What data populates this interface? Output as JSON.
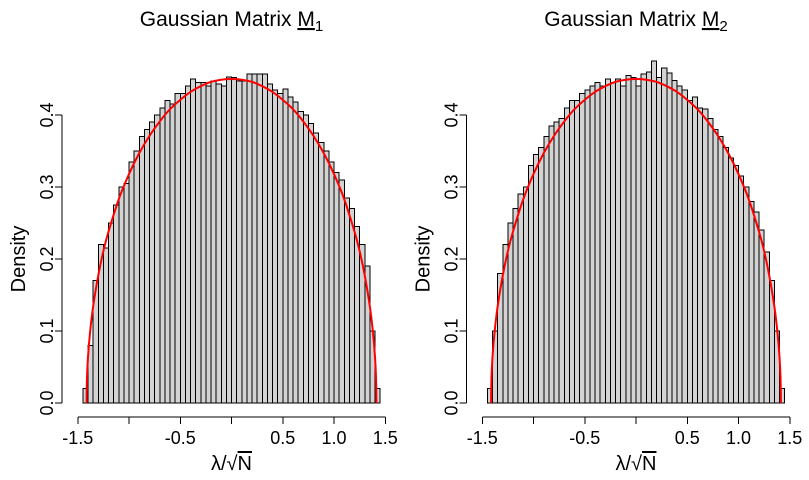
{
  "chart_data": [
    {
      "type": "bar",
      "title": {
        "text": "Gaussian Matrix",
        "symbol": "M",
        "subscript": "1"
      },
      "xlabel": {
        "text": "λ/√",
        "radicand": "N"
      },
      "ylabel": "Density",
      "xlim": [
        -1.5,
        1.5
      ],
      "ylim": [
        0,
        0.4
      ],
      "grid": false,
      "x_ticks": [
        -1.5,
        -1.0,
        -0.5,
        0.0,
        0.5,
        1.0,
        1.5
      ],
      "x_tick_labels": {
        "at": [
          -1.5,
          -0.5,
          0.5,
          1.0,
          1.5
        ],
        "text": [
          "-1.5",
          "-0.5",
          "0.5",
          "1.0",
          "1.5"
        ]
      },
      "y_ticks": [
        0.0,
        0.1,
        0.2,
        0.3,
        0.4
      ],
      "y_tick_labels": [
        "0.0",
        "0.1",
        "0.2",
        "0.3",
        "0.4"
      ],
      "bins": {
        "from": -1.45,
        "to": 1.45,
        "width": 0.05
      },
      "values": [
        0.02,
        0.08,
        0.17,
        0.22,
        0.215,
        0.25,
        0.275,
        0.3,
        0.305,
        0.335,
        0.35,
        0.37,
        0.38,
        0.39,
        0.4,
        0.41,
        0.42,
        0.415,
        0.43,
        0.43,
        0.44,
        0.45,
        0.445,
        0.445,
        0.44,
        0.447,
        0.443,
        0.44,
        0.453,
        0.452,
        0.447,
        0.447,
        0.457,
        0.457,
        0.457,
        0.457,
        0.443,
        0.435,
        0.43,
        0.436,
        0.425,
        0.418,
        0.405,
        0.4,
        0.388,
        0.375,
        0.362,
        0.35,
        0.335,
        0.32,
        0.31,
        0.285,
        0.27,
        0.245,
        0.22,
        0.19,
        0.1,
        0.02
      ],
      "curve": {
        "x": [
          -1.414,
          -1.41,
          -1.4,
          -1.38,
          -1.35,
          -1.3,
          -1.25,
          -1.2,
          -1.1,
          -1.0,
          -0.9,
          -0.8,
          -0.7,
          -0.6,
          -0.5,
          -0.4,
          -0.3,
          -0.2,
          -0.1,
          0,
          0.1,
          0.2,
          0.3,
          0.4,
          0.5,
          0.6,
          0.7,
          0.8,
          0.9,
          1.0,
          1.1,
          1.2,
          1.25,
          1.3,
          1.35,
          1.38,
          1.4,
          1.41,
          1.414
        ],
        "y": [
          0,
          0.035,
          0.064,
          0.098,
          0.134,
          0.177,
          0.211,
          0.238,
          0.283,
          0.318,
          0.347,
          0.371,
          0.391,
          0.408,
          0.421,
          0.432,
          0.44,
          0.446,
          0.449,
          0.45,
          0.449,
          0.446,
          0.44,
          0.432,
          0.421,
          0.408,
          0.391,
          0.371,
          0.347,
          0.318,
          0.283,
          0.238,
          0.211,
          0.177,
          0.134,
          0.098,
          0.064,
          0.035,
          0
        ]
      },
      "bar_color": "#d3d3d3",
      "bar_border_color": "#000000",
      "curve_color": "#ff0000"
    },
    {
      "type": "bar",
      "title": {
        "text": "Gaussian Matrix",
        "symbol": "M",
        "subscript": "2"
      },
      "xlabel": {
        "text": "λ/√",
        "radicand": "N"
      },
      "ylabel": "Density",
      "xlim": [
        -1.5,
        1.5
      ],
      "ylim": [
        0,
        0.4
      ],
      "grid": false,
      "x_ticks": [
        -1.5,
        -1.0,
        -0.5,
        0.0,
        0.5,
        1.0,
        1.5
      ],
      "x_tick_labels": {
        "at": [
          -1.5,
          -0.5,
          0.5,
          1.0,
          1.5
        ],
        "text": [
          "-1.5",
          "-0.5",
          "0.5",
          "1.0",
          "1.5"
        ]
      },
      "y_ticks": [
        0.0,
        0.1,
        0.2,
        0.3,
        0.4
      ],
      "y_tick_labels": [
        "0.0",
        "0.1",
        "0.2",
        "0.3",
        "0.4"
      ],
      "bins": {
        "from": -1.45,
        "to": 1.45,
        "width": 0.05
      },
      "values": [
        0.02,
        0.1,
        0.18,
        0.22,
        0.25,
        0.27,
        0.29,
        0.3,
        0.33,
        0.345,
        0.355,
        0.37,
        0.385,
        0.39,
        0.395,
        0.41,
        0.42,
        0.42,
        0.43,
        0.435,
        0.44,
        0.445,
        0.44,
        0.45,
        0.445,
        0.45,
        0.44,
        0.455,
        0.452,
        0.44,
        0.457,
        0.46,
        0.475,
        0.452,
        0.465,
        0.458,
        0.448,
        0.44,
        0.435,
        0.42,
        0.425,
        0.41,
        0.408,
        0.395,
        0.38,
        0.37,
        0.355,
        0.34,
        0.33,
        0.315,
        0.3,
        0.28,
        0.265,
        0.24,
        0.21,
        0.17,
        0.1,
        0.02
      ],
      "curve": {
        "x": [
          -1.414,
          -1.41,
          -1.4,
          -1.38,
          -1.35,
          -1.3,
          -1.25,
          -1.2,
          -1.1,
          -1.0,
          -0.9,
          -0.8,
          -0.7,
          -0.6,
          -0.5,
          -0.4,
          -0.3,
          -0.2,
          -0.1,
          0,
          0.1,
          0.2,
          0.3,
          0.4,
          0.5,
          0.6,
          0.7,
          0.8,
          0.9,
          1.0,
          1.1,
          1.2,
          1.25,
          1.3,
          1.35,
          1.38,
          1.4,
          1.41,
          1.414
        ],
        "y": [
          0,
          0.035,
          0.064,
          0.098,
          0.134,
          0.177,
          0.211,
          0.238,
          0.283,
          0.318,
          0.347,
          0.371,
          0.391,
          0.408,
          0.421,
          0.432,
          0.44,
          0.446,
          0.449,
          0.45,
          0.449,
          0.446,
          0.44,
          0.432,
          0.421,
          0.408,
          0.391,
          0.371,
          0.347,
          0.318,
          0.283,
          0.238,
          0.211,
          0.177,
          0.134,
          0.098,
          0.064,
          0.035,
          0
        ]
      },
      "bar_color": "#d3d3d3",
      "bar_border_color": "#000000",
      "curve_color": "#ff0000"
    }
  ]
}
